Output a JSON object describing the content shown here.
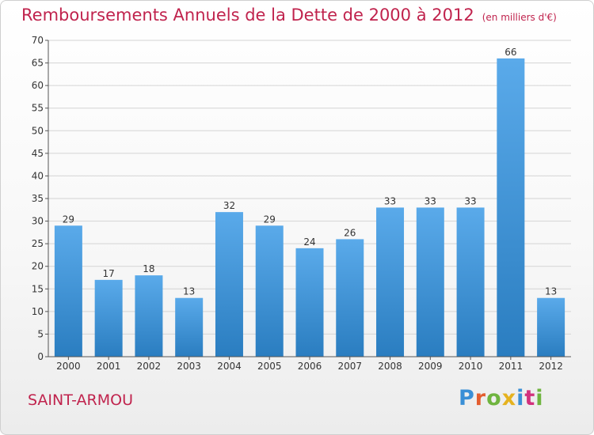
{
  "header": {
    "title": "Remboursements Annuels de la Dette de 2000 à 2012",
    "unit": "(en milliers d'€)"
  },
  "footer": {
    "commune": "SAINT-ARMOU",
    "logo_text": "Proxiti",
    "logo_colors": [
      "#3a8fd6",
      "#e35d2f",
      "#6fb43f",
      "#e5b21f",
      "#3a8fd6",
      "#d2317d",
      "#6fb43f"
    ]
  },
  "colors": {
    "bar_top": "#5aaaea",
    "bar_bottom": "#2a7dc0",
    "accent": "#c0234d"
  },
  "chart_data": {
    "type": "bar",
    "categories": [
      "2000",
      "2001",
      "2002",
      "2003",
      "2004",
      "2005",
      "2006",
      "2007",
      "2008",
      "2009",
      "2010",
      "2011",
      "2012"
    ],
    "values": [
      29,
      17,
      18,
      13,
      32,
      29,
      24,
      26,
      33,
      33,
      33,
      66,
      13
    ],
    "ylim": [
      0,
      70
    ],
    "yticks": [
      0,
      5,
      10,
      15,
      20,
      25,
      30,
      35,
      40,
      45,
      50,
      55,
      60,
      65,
      70
    ],
    "grid": true,
    "legend": "none"
  }
}
